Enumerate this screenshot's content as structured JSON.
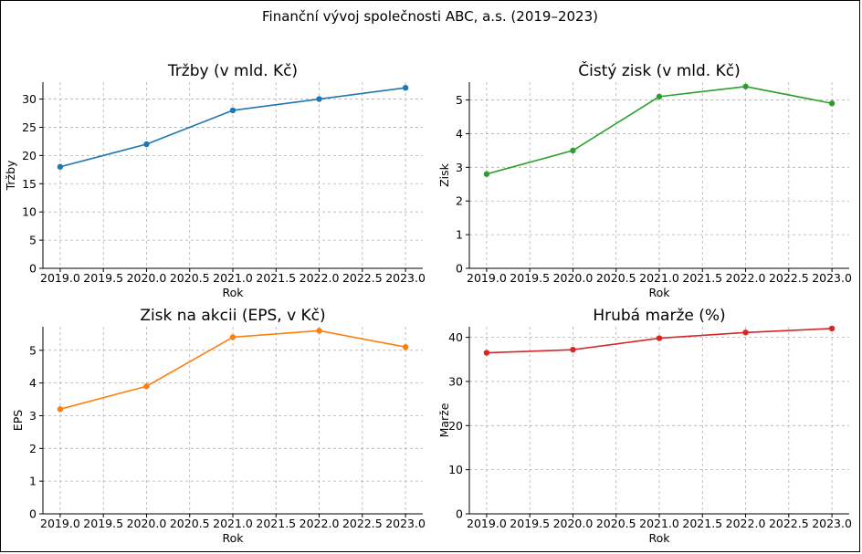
{
  "suptitle": "Finanční vývoj společnosti ABC, a.s. (2019–2023)",
  "chart_data": [
    {
      "type": "line",
      "title": "Tržby (v mld. Kč)",
      "xlabel": "Rok",
      "ylabel": "Tržby",
      "x": [
        2019,
        2020,
        2021,
        2022,
        2023
      ],
      "values": [
        18,
        22,
        28,
        30,
        32
      ],
      "color": "#1f77b4",
      "xlim": [
        2018.8,
        2023.2
      ],
      "ylim": [
        0,
        33
      ],
      "xticks": [
        "2019.0",
        "2019.5",
        "2020.0",
        "2020.5",
        "2021.0",
        "2021.5",
        "2022.0",
        "2022.5",
        "2023.0"
      ],
      "yticks": [
        "0",
        "5",
        "10",
        "15",
        "20",
        "25",
        "30"
      ],
      "grid": true
    },
    {
      "type": "line",
      "title": "Čistý zisk (v mld. Kč)",
      "xlabel": "Rok",
      "ylabel": "Zisk",
      "x": [
        2019,
        2020,
        2021,
        2022,
        2023
      ],
      "values": [
        2.8,
        3.5,
        5.1,
        5.4,
        4.9
      ],
      "color": "#2ca02c",
      "xlim": [
        2018.8,
        2023.2
      ],
      "ylim": [
        0,
        5.53
      ],
      "xticks": [
        "2019.0",
        "2019.5",
        "2020.0",
        "2020.5",
        "2021.0",
        "2021.5",
        "2022.0",
        "2022.5",
        "2023.0"
      ],
      "yticks": [
        "0",
        "1",
        "2",
        "3",
        "4",
        "5"
      ],
      "grid": true
    },
    {
      "type": "line",
      "title": "Zisk na akcii (EPS, v Kč)",
      "xlabel": "Rok",
      "ylabel": "EPS",
      "x": [
        2019,
        2020,
        2021,
        2022,
        2023
      ],
      "values": [
        3.2,
        3.9,
        5.4,
        5.6,
        5.1
      ],
      "color": "#ff7f0e",
      "xlim": [
        2018.8,
        2023.2
      ],
      "ylim": [
        0,
        5.72
      ],
      "xticks": [
        "2019.0",
        "2019.5",
        "2020.0",
        "2020.5",
        "2021.0",
        "2021.5",
        "2022.0",
        "2022.5",
        "2023.0"
      ],
      "yticks": [
        "0",
        "1",
        "2",
        "3",
        "4",
        "5"
      ],
      "grid": true
    },
    {
      "type": "line",
      "title": "Hrubá marže (%)",
      "xlabel": "Rok",
      "ylabel": "Marže",
      "x": [
        2019,
        2020,
        2021,
        2022,
        2023
      ],
      "values": [
        36.5,
        37.2,
        39.8,
        41.1,
        42.0
      ],
      "color": "#d62728",
      "xlim": [
        2018.8,
        2023.2
      ],
      "ylim": [
        0,
        42.4
      ],
      "xticks": [
        "2019.0",
        "2019.5",
        "2020.0",
        "2020.5",
        "2021.0",
        "2021.5",
        "2022.0",
        "2022.5",
        "2023.0"
      ],
      "yticks": [
        "0",
        "10",
        "20",
        "30",
        "40"
      ],
      "grid": true
    }
  ]
}
